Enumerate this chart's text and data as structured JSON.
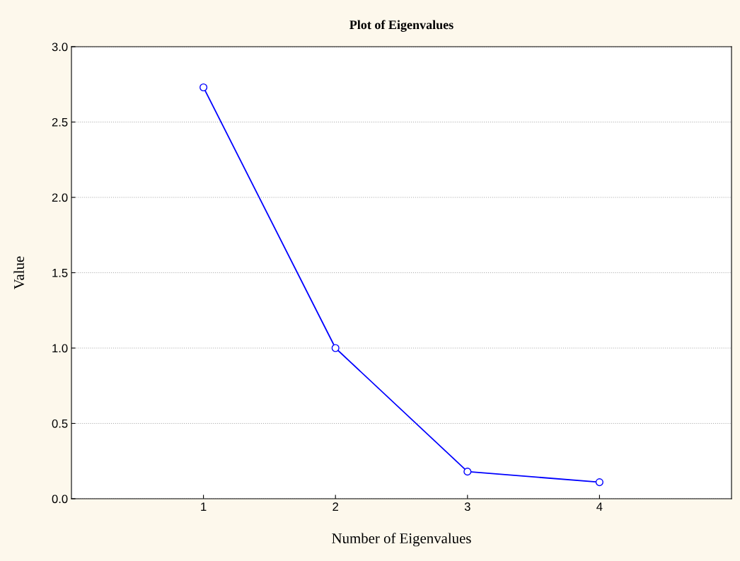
{
  "chart_data": {
    "type": "line",
    "title": "Plot of Eigenvalues",
    "xlabel": "Number of Eigenvalues",
    "ylabel": "Value",
    "x": [
      1,
      2,
      3,
      4
    ],
    "series": [
      {
        "color": "#0000ff",
        "values": [
          2.73,
          1.0,
          0.18,
          0.11
        ]
      }
    ],
    "xlim": [
      0,
      5
    ],
    "xticks": [
      1,
      2,
      3,
      4
    ],
    "ylim": [
      0,
      3.0
    ],
    "yticks": [
      {
        "value": 0,
        "label": "0.0"
      },
      {
        "value": 0.5,
        "label": "0.5"
      },
      {
        "value": 1.0,
        "label": "1.0"
      },
      {
        "value": 1.5,
        "label": "1.5"
      },
      {
        "value": 2.0,
        "label": "2.0"
      },
      {
        "value": 2.5,
        "label": "2.5"
      },
      {
        "value": 3.0,
        "label": "3.0"
      }
    ],
    "grid": "y",
    "marker": "circle",
    "line_style": "solid"
  }
}
